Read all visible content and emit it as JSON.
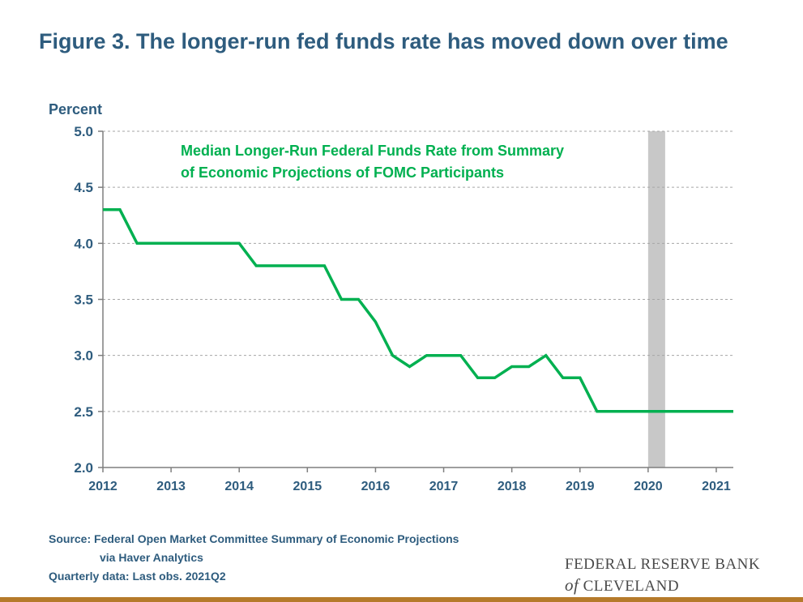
{
  "title": "Figure 3. The longer-run fed funds rate has moved down over time",
  "source": {
    "line1": "Source: Federal Open Market Committee Summary of Economic Projections",
    "line2": "via Haver Analytics",
    "line3": "Quarterly data: Last obs. 2021Q2"
  },
  "logo": {
    "line1": "FEDERAL RESERVE BANK",
    "line2_of": "of",
    "line2_rest": "CLEVELAND"
  },
  "colors": {
    "series": "#00b050",
    "title_text": "#2e5c7e",
    "recession_shade": "#c8c8c8",
    "bottom_rule": "#b57a2b"
  },
  "chart_data": {
    "type": "line",
    "ylabel": "Percent",
    "ylim": [
      2.0,
      5.0
    ],
    "yticks": [
      "2.0",
      "2.5",
      "3.0",
      "3.5",
      "4.0",
      "4.5",
      "5.0"
    ],
    "xlim": [
      "2012Q1",
      "2021Q2"
    ],
    "xticks": [
      "2012",
      "2013",
      "2014",
      "2015",
      "2016",
      "2017",
      "2018",
      "2019",
      "2020",
      "2021"
    ],
    "grid": true,
    "annotation": {
      "line1": "Median Longer-Run Federal Funds Rate from Summary",
      "line2": "of Economic Projections of FOMC Participants"
    },
    "shaded_region": {
      "start": "2020Q1",
      "end": "2020Q2"
    },
    "series": [
      {
        "x": [
          "2012Q1",
          "2012Q2",
          "2012Q3",
          "2012Q4",
          "2013Q1",
          "2013Q2",
          "2013Q3",
          "2013Q4",
          "2014Q1",
          "2014Q2",
          "2014Q3",
          "2014Q4",
          "2015Q1",
          "2015Q2",
          "2015Q3",
          "2015Q4",
          "2016Q1",
          "2016Q2",
          "2016Q3",
          "2016Q4",
          "2017Q1",
          "2017Q2",
          "2017Q3",
          "2017Q4",
          "2018Q1",
          "2018Q2",
          "2018Q3",
          "2018Q4",
          "2019Q1",
          "2019Q2",
          "2019Q3",
          "2019Q4",
          "2020Q1",
          "2020Q2",
          "2020Q3",
          "2020Q4",
          "2021Q1",
          "2021Q2"
        ],
        "values": [
          4.3,
          4.3,
          4.0,
          4.0,
          4.0,
          4.0,
          4.0,
          4.0,
          4.0,
          3.8,
          3.8,
          3.8,
          3.8,
          3.8,
          3.5,
          3.5,
          3.3,
          3.0,
          2.9,
          3.0,
          3.0,
          3.0,
          2.8,
          2.8,
          2.9,
          2.9,
          3.0,
          2.8,
          2.8,
          2.5,
          2.5,
          2.5,
          2.5,
          2.5,
          2.5,
          2.5,
          2.5,
          2.5
        ]
      }
    ]
  }
}
